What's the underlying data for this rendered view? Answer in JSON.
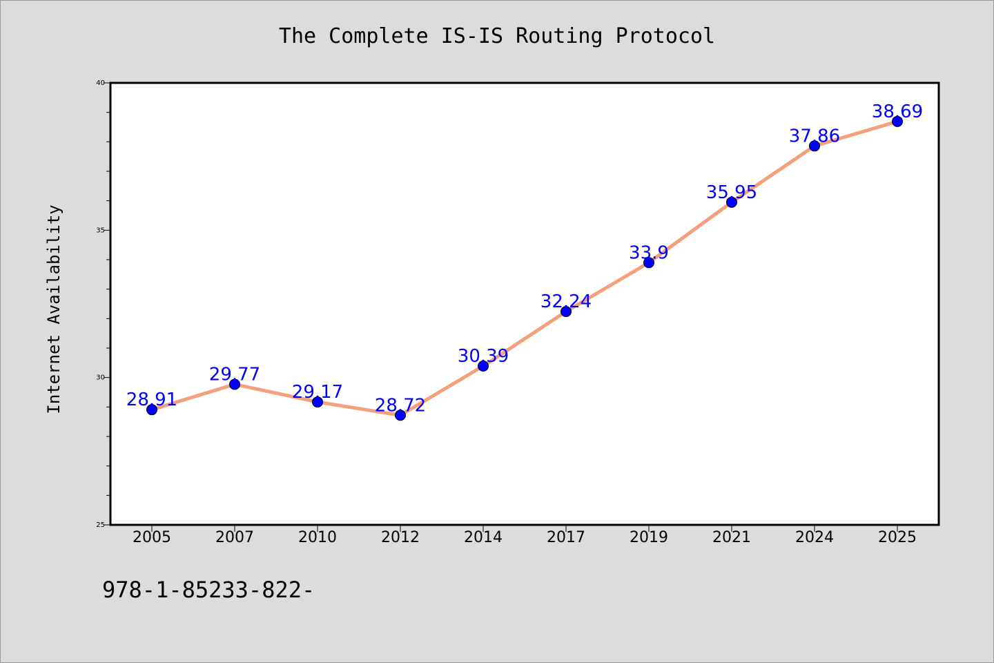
{
  "chart_data": {
    "type": "line",
    "title": "The Complete IS-IS Routing Protocol",
    "xlabel": "",
    "ylabel": "Internet Availability",
    "categories": [
      "2005",
      "2007",
      "2010",
      "2012",
      "2014",
      "2017",
      "2019",
      "2021",
      "2024",
      "2025"
    ],
    "series": [
      {
        "values": [
          28.91,
          29.77,
          29.17,
          28.72,
          30.39,
          32.24,
          33.9,
          35.95,
          37.86,
          38.69
        ],
        "line_color": "#f4a07c",
        "marker_color": "#0000ff",
        "label_color": "#0000ff"
      }
    ],
    "data_labels": [
      "28.91",
      "29.77",
      "29.17",
      "28.72",
      "30.39",
      "32.24",
      "33.9",
      "35.95",
      "37.86",
      "38.69"
    ],
    "ylim": [
      25,
      40
    ],
    "y_ticks": [
      "25",
      "30",
      "35",
      "40"
    ],
    "grid": false,
    "background": "#dcdcdc",
    "plot_background": "#ffffff"
  },
  "footer": {
    "isbn_text": "978-1-85233-822-"
  }
}
